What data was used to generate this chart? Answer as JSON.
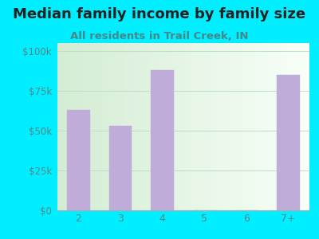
{
  "title": "Median family income by family size",
  "subtitle": "All residents in Trail Creek, IN",
  "categories": [
    "2",
    "3",
    "4",
    "5",
    "6",
    "7+"
  ],
  "values": [
    63000,
    53000,
    88000,
    0,
    0,
    85000
  ],
  "bar_color": "#c0acd8",
  "background_color": "#00eeff",
  "plot_bg_left": "#d4ecd4",
  "plot_bg_right": "#f0f8f0",
  "yticks": [
    0,
    25000,
    50000,
    75000,
    100000
  ],
  "ytick_labels": [
    "$0",
    "$25k",
    "$50k",
    "$75k",
    "$100k"
  ],
  "ylim": [
    0,
    105000
  ],
  "title_fontsize": 13,
  "subtitle_fontsize": 9.5,
  "title_color": "#222222",
  "subtitle_color": "#448888",
  "tick_color": "#558888",
  "grid_color": "#bbddcc"
}
